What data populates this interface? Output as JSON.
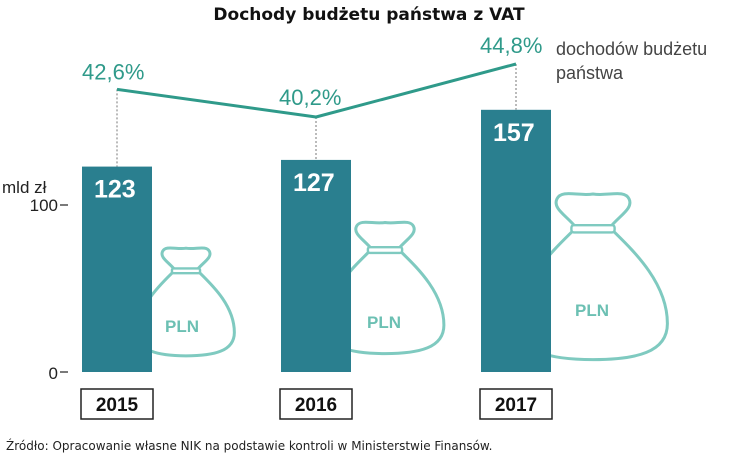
{
  "chart_data": {
    "type": "bar",
    "title": "Dochody budżetu państwa z VAT",
    "ylabel": "mld zł",
    "ylim": [
      0,
      160
    ],
    "yticks": [
      "100",
      "0"
    ],
    "categories": [
      "2015",
      "2016",
      "2017"
    ],
    "series": [
      {
        "values": [
          123,
          127,
          157
        ]
      }
    ],
    "share_line": {
      "label": "dochodów budżetu państwa",
      "values": [
        42.6,
        40.2,
        44.8
      ],
      "value_labels": [
        "42,6%",
        "40,2%",
        "44,8%"
      ]
    },
    "bag_label": "PLN",
    "colors": {
      "bar": "#2a7f8f",
      "line": "#2f9a8a",
      "bag": "#7fcac0"
    }
  },
  "source": "Źródło: Opracowanie własne NIK na podstawie kontroli w Ministerstwie Finansów."
}
